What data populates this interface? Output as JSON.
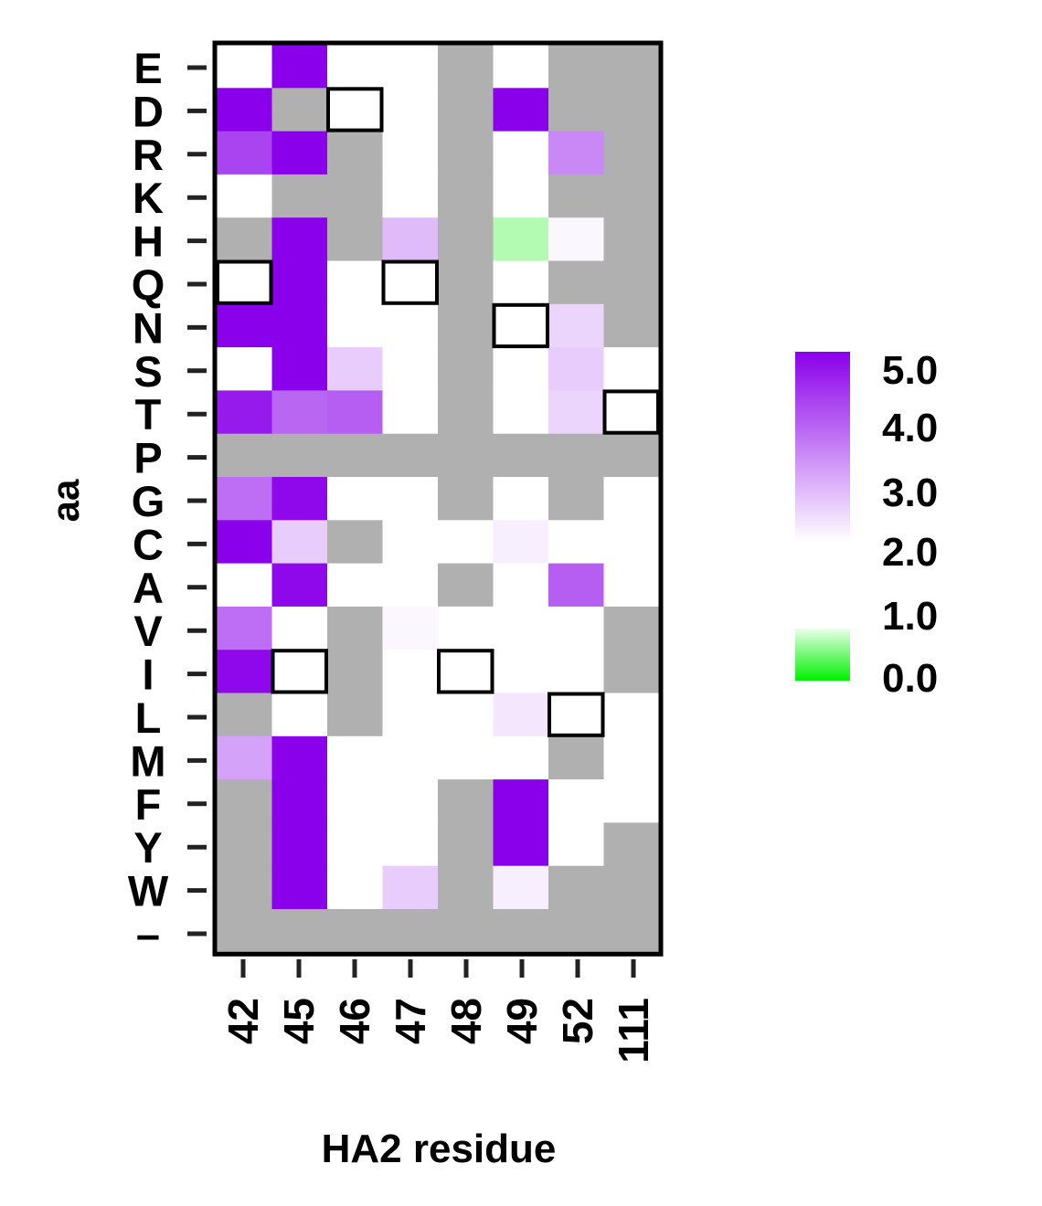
{
  "chart_data": {
    "type": "heatmap",
    "xlabel": "HA2 residue",
    "ylabel": "aa",
    "x_categories": [
      "42",
      "45",
      "46",
      "47",
      "48",
      "49",
      "52",
      "111"
    ],
    "y_categories": [
      "E",
      "D",
      "R",
      "K",
      "H",
      "Q",
      "N",
      "S",
      "T",
      "P",
      "G",
      "C",
      "A",
      "V",
      "I",
      "L",
      "M",
      "F",
      "Y",
      "W",
      "*"
    ],
    "y_tick_labels": [
      "E",
      "D",
      "R",
      "K",
      "H",
      "Q",
      "N",
      "S",
      "T",
      "P",
      "G",
      "C",
      "A",
      "V",
      "I",
      "L",
      "M",
      "F",
      "Y",
      "W",
      "–"
    ],
    "values": [
      [
        2.0,
        5.0,
        2.0,
        2.0,
        null,
        2.0,
        null,
        null
      ],
      [
        5.0,
        null,
        2.0,
        2.0,
        null,
        5.0,
        null,
        null
      ],
      [
        4.2,
        5.0,
        null,
        2.0,
        null,
        2.0,
        3.4,
        null
      ],
      [
        2.0,
        null,
        null,
        1.2,
        null,
        2.0,
        null,
        null
      ],
      [
        null,
        5.0,
        null,
        2.8,
        null,
        0.7,
        2.1,
        null
      ],
      [
        2.0,
        5.0,
        2.0,
        2.0,
        null,
        2.0,
        null,
        null
      ],
      [
        5.0,
        5.0,
        1.5,
        2.0,
        null,
        2.0,
        2.5,
        null
      ],
      [
        2.0,
        5.0,
        2.6,
        2.0,
        null,
        2.0,
        2.6,
        2.0
      ],
      [
        4.7,
        3.8,
        3.9,
        2.0,
        null,
        2.0,
        2.5,
        2.0
      ],
      [
        null,
        null,
        null,
        null,
        null,
        null,
        null,
        null
      ],
      [
        3.7,
        4.9,
        2.0,
        2.0,
        null,
        2.0,
        null,
        2.0
      ],
      [
        5.0,
        2.6,
        null,
        2.0,
        2.0,
        2.2,
        2.0,
        2.0
      ],
      [
        2.0,
        4.9,
        1.1,
        2.0,
        null,
        2.0,
        3.9,
        2.0
      ],
      [
        3.7,
        2.0,
        null,
        2.1,
        2.0,
        2.0,
        2.0,
        null
      ],
      [
        4.9,
        2.0,
        null,
        2.0,
        2.0,
        2.0,
        2.0,
        null
      ],
      [
        null,
        2.0,
        null,
        2.0,
        2.0,
        2.3,
        2.0,
        2.0
      ],
      [
        3.1,
        5.0,
        2.0,
        2.0,
        2.0,
        2.0,
        null,
        2.0
      ],
      [
        null,
        5.0,
        2.0,
        2.0,
        null,
        5.0,
        2.0,
        2.0
      ],
      [
        null,
        5.0,
        2.0,
        2.0,
        null,
        5.0,
        2.0,
        null
      ],
      [
        null,
        5.0,
        2.0,
        2.6,
        null,
        2.2,
        null,
        null
      ],
      [
        null,
        null,
        null,
        null,
        null,
        null,
        null,
        null
      ]
    ],
    "wildtype_cells": [
      {
        "aa": "D",
        "residue": "46"
      },
      {
        "aa": "Q",
        "residue": "42"
      },
      {
        "aa": "Q",
        "residue": "47"
      },
      {
        "aa": "N",
        "residue": "49"
      },
      {
        "aa": "T",
        "residue": "111"
      },
      {
        "aa": "I",
        "residue": "45"
      },
      {
        "aa": "I",
        "residue": "48"
      },
      {
        "aa": "L",
        "residue": "52"
      }
    ],
    "missing_color": "#b0b0b0",
    "colorbar": {
      "ticks": [
        "5.0",
        "4.0",
        "3.0",
        "2.0",
        "1.0",
        "0.0"
      ],
      "range": [
        0,
        5
      ],
      "gap": [
        1.0,
        2.0
      ],
      "high_color": "#8b00eb",
      "mid_color": "#ffffff",
      "low_color": "#00f000"
    }
  }
}
